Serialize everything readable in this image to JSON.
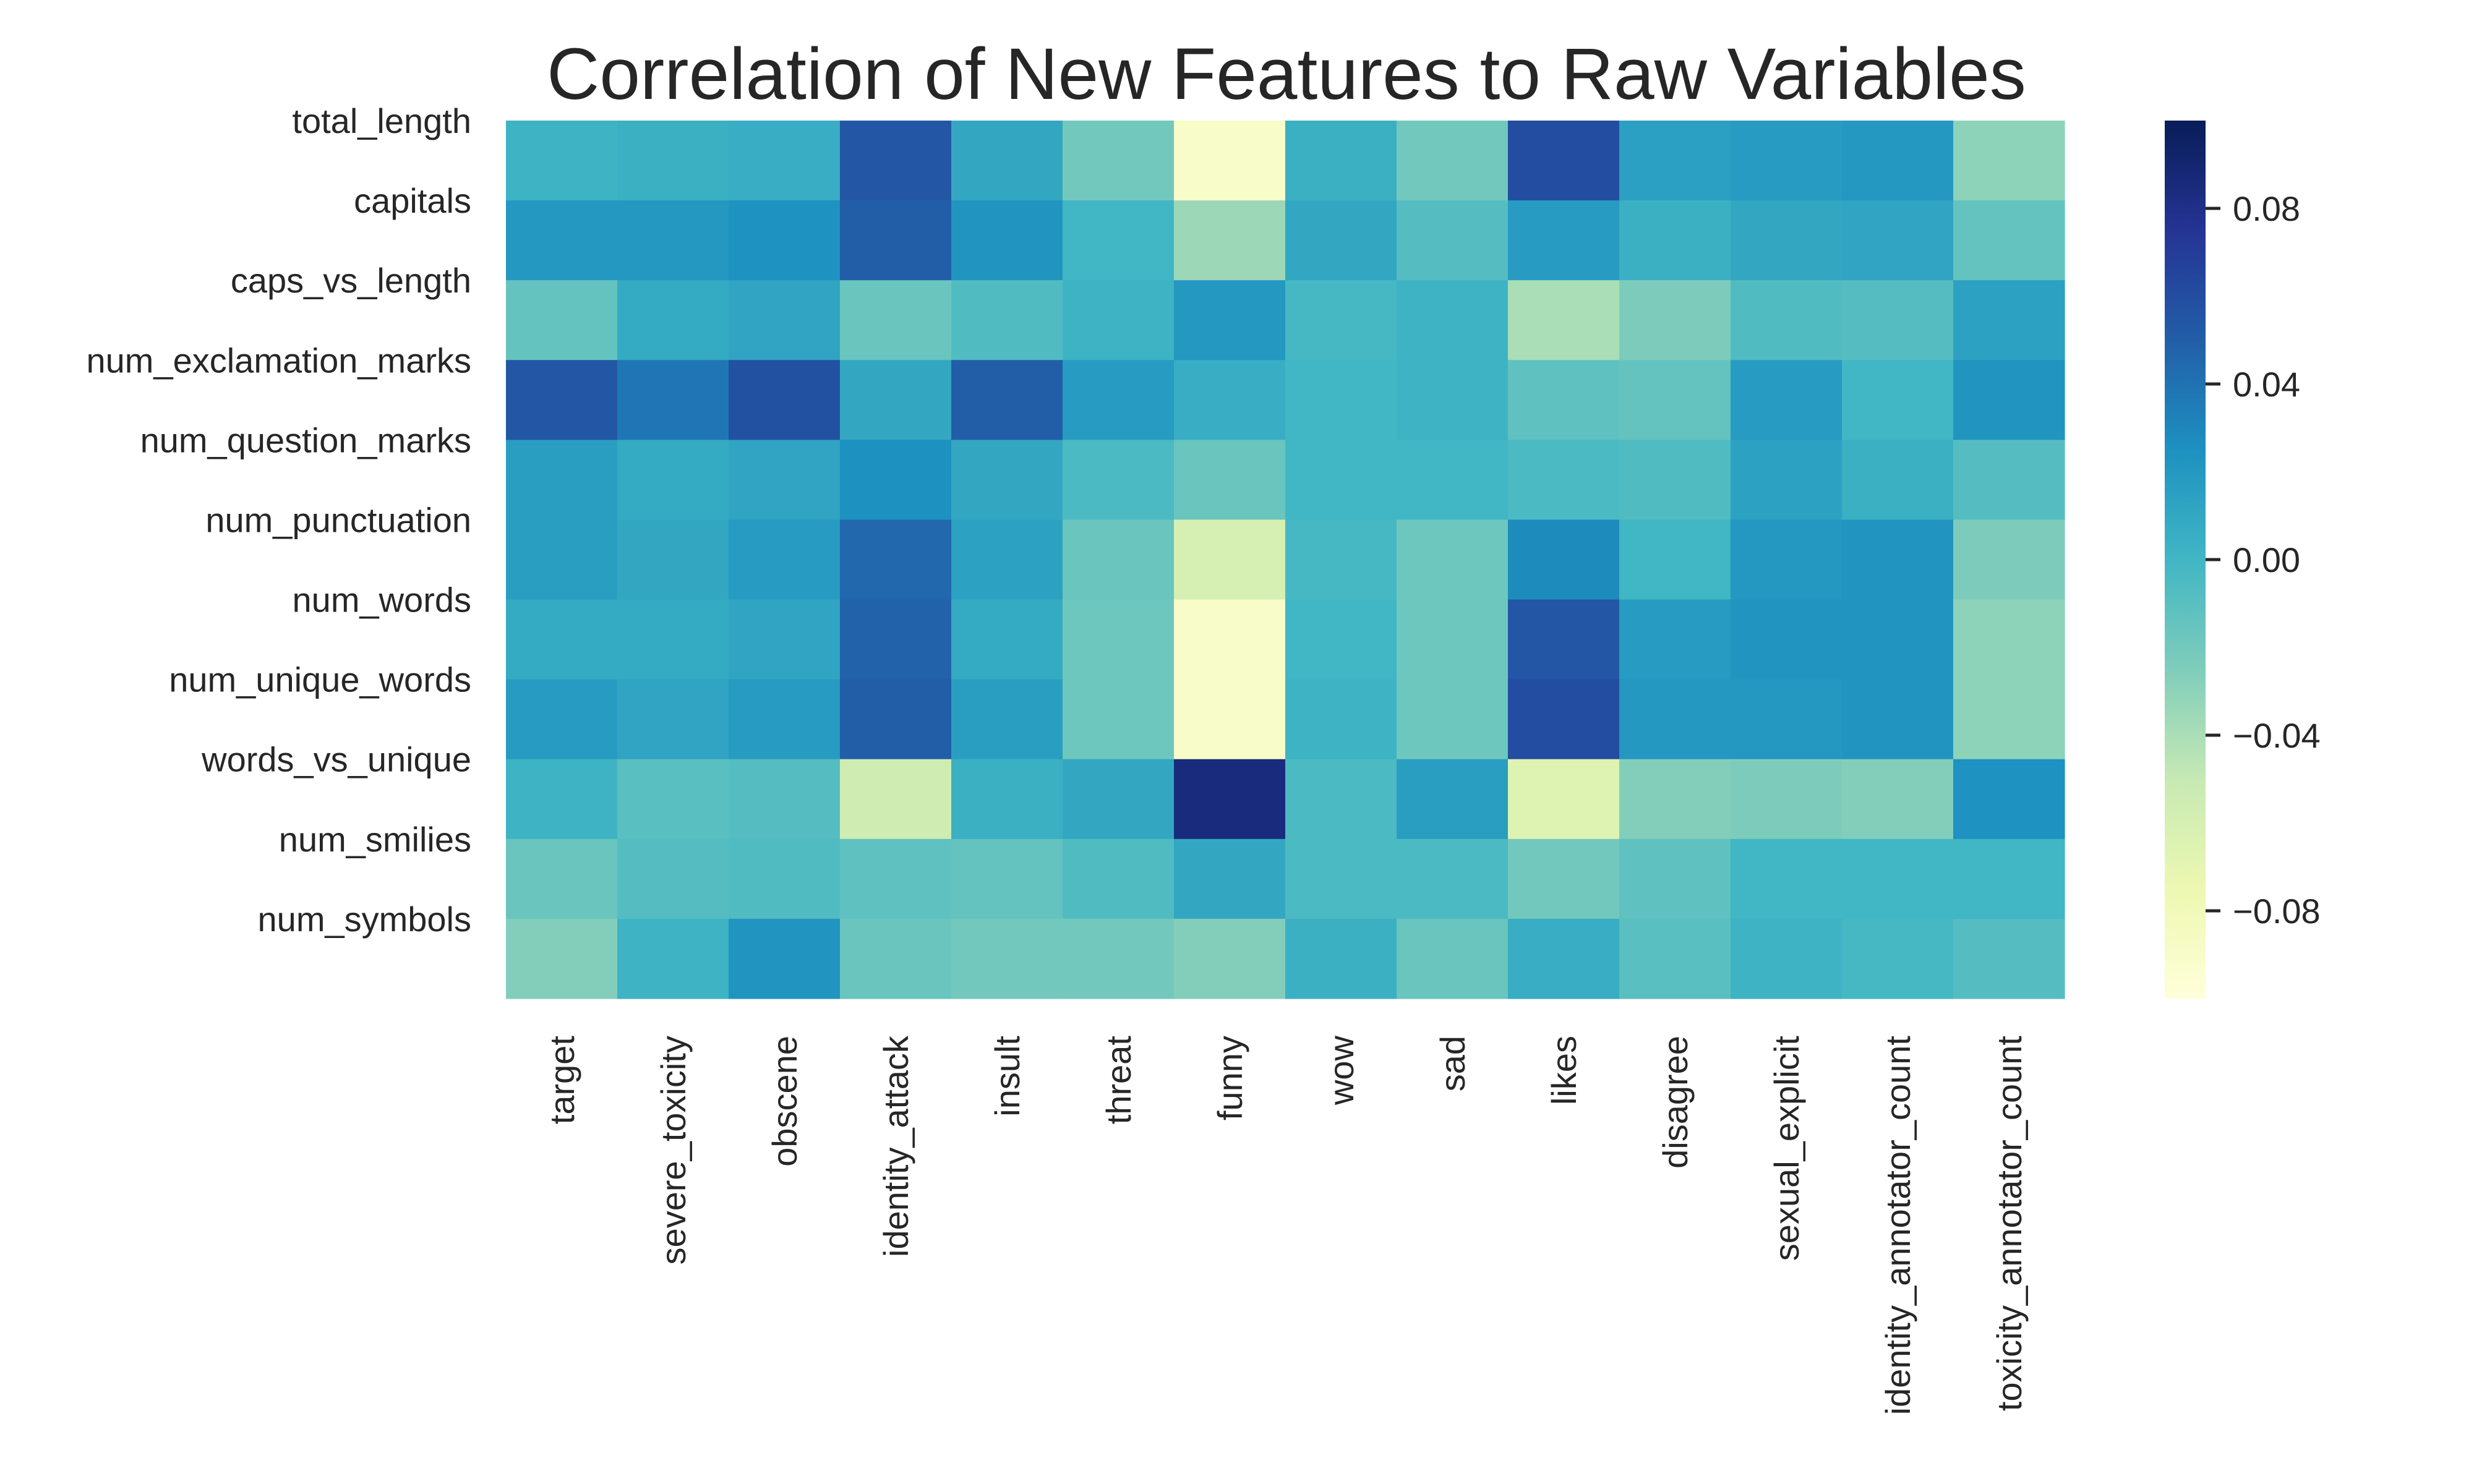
{
  "chart_data": {
    "type": "heatmap",
    "title": "Correlation of New Features to Raw Variables",
    "rows": [
      "total_length",
      "capitals",
      "caps_vs_length",
      "num_exclamation_marks",
      "num_question_marks",
      "num_punctuation",
      "num_words",
      "num_unique_words",
      "words_vs_unique",
      "num_smilies",
      "num_symbols"
    ],
    "columns": [
      "target",
      "severe_toxicity",
      "obscene",
      "identity_attack",
      "insult",
      "threat",
      "funny",
      "wow",
      "sad",
      "likes",
      "disagree",
      "sexual_explicit",
      "identity_annotator_count",
      "toxicity_annotator_count"
    ],
    "values": [
      [
        0.002,
        0.004,
        0.006,
        0.055,
        0.01,
        -0.02,
        -0.09,
        0.004,
        -0.02,
        0.06,
        0.015,
        0.018,
        0.02,
        -0.03
      ],
      [
        0.02,
        0.02,
        0.024,
        0.05,
        0.022,
        0.0,
        -0.035,
        0.01,
        -0.008,
        0.018,
        0.004,
        0.01,
        0.012,
        -0.014
      ],
      [
        -0.014,
        0.008,
        0.012,
        -0.016,
        -0.006,
        0.002,
        0.02,
        -0.002,
        0.002,
        -0.04,
        -0.024,
        -0.006,
        -0.008,
        0.014
      ],
      [
        0.055,
        0.038,
        0.058,
        0.01,
        0.05,
        0.018,
        0.006,
        0.0,
        0.002,
        -0.012,
        -0.014,
        0.018,
        0.0,
        0.022
      ],
      [
        0.016,
        0.008,
        0.012,
        0.025,
        0.01,
        -0.004,
        -0.016,
        0.0,
        0.0,
        -0.004,
        -0.006,
        0.014,
        0.004,
        -0.008
      ],
      [
        0.016,
        0.01,
        0.018,
        0.045,
        0.014,
        -0.016,
        -0.06,
        -0.002,
        -0.018,
        0.028,
        0.0,
        0.02,
        0.022,
        -0.024
      ],
      [
        0.008,
        0.008,
        0.012,
        0.048,
        0.008,
        -0.018,
        -0.09,
        0.0,
        -0.018,
        0.055,
        0.018,
        0.022,
        0.022,
        -0.03
      ],
      [
        0.018,
        0.012,
        0.018,
        0.05,
        0.016,
        -0.018,
        -0.09,
        0.002,
        -0.018,
        0.06,
        0.02,
        0.02,
        0.022,
        -0.03
      ],
      [
        0.002,
        -0.01,
        -0.008,
        -0.055,
        0.004,
        0.01,
        0.085,
        -0.004,
        0.016,
        -0.065,
        -0.026,
        -0.024,
        -0.026,
        0.024
      ],
      [
        -0.016,
        -0.008,
        -0.006,
        -0.012,
        -0.014,
        -0.006,
        0.01,
        -0.004,
        -0.004,
        -0.02,
        -0.012,
        0.0,
        0.0,
        0.0
      ],
      [
        -0.026,
        0.002,
        0.022,
        -0.016,
        -0.02,
        -0.02,
        -0.026,
        0.004,
        -0.016,
        0.006,
        -0.01,
        0.002,
        -0.002,
        -0.008
      ]
    ],
    "colorbar": {
      "vmin": -0.1,
      "vmax": 0.1,
      "ticks": [
        0.08,
        0.04,
        0.0,
        -0.04,
        -0.08
      ],
      "tick_labels": [
        "0.08",
        "0.04",
        "0.00",
        "−0.04",
        "−0.08"
      ],
      "colormap": "YlGnBu",
      "colors": [
        "#ffffd9",
        "#edf8b1",
        "#c7e9b4",
        "#7fcdbb",
        "#41b6c4",
        "#1d91c0",
        "#225ea8",
        "#253494",
        "#081d58"
      ]
    },
    "grid": false
  }
}
